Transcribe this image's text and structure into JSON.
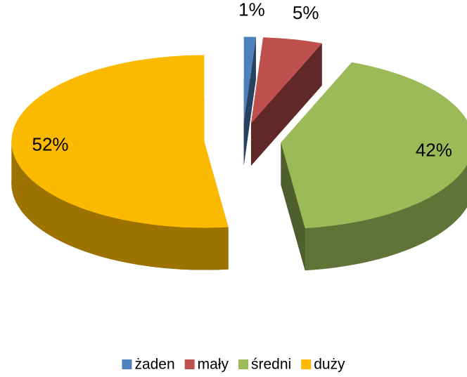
{
  "chart_data": {
    "type": "pie",
    "categories": [
      "żaden",
      "mały",
      "średni",
      "duży"
    ],
    "values": [
      1,
      5,
      42,
      52
    ],
    "value_labels": [
      "1%",
      "5%",
      "42%",
      "52%"
    ],
    "colors": [
      "#4f81bd",
      "#c0504d",
      "#9bbb59",
      "#fbb900"
    ],
    "legend": "bottom"
  }
}
